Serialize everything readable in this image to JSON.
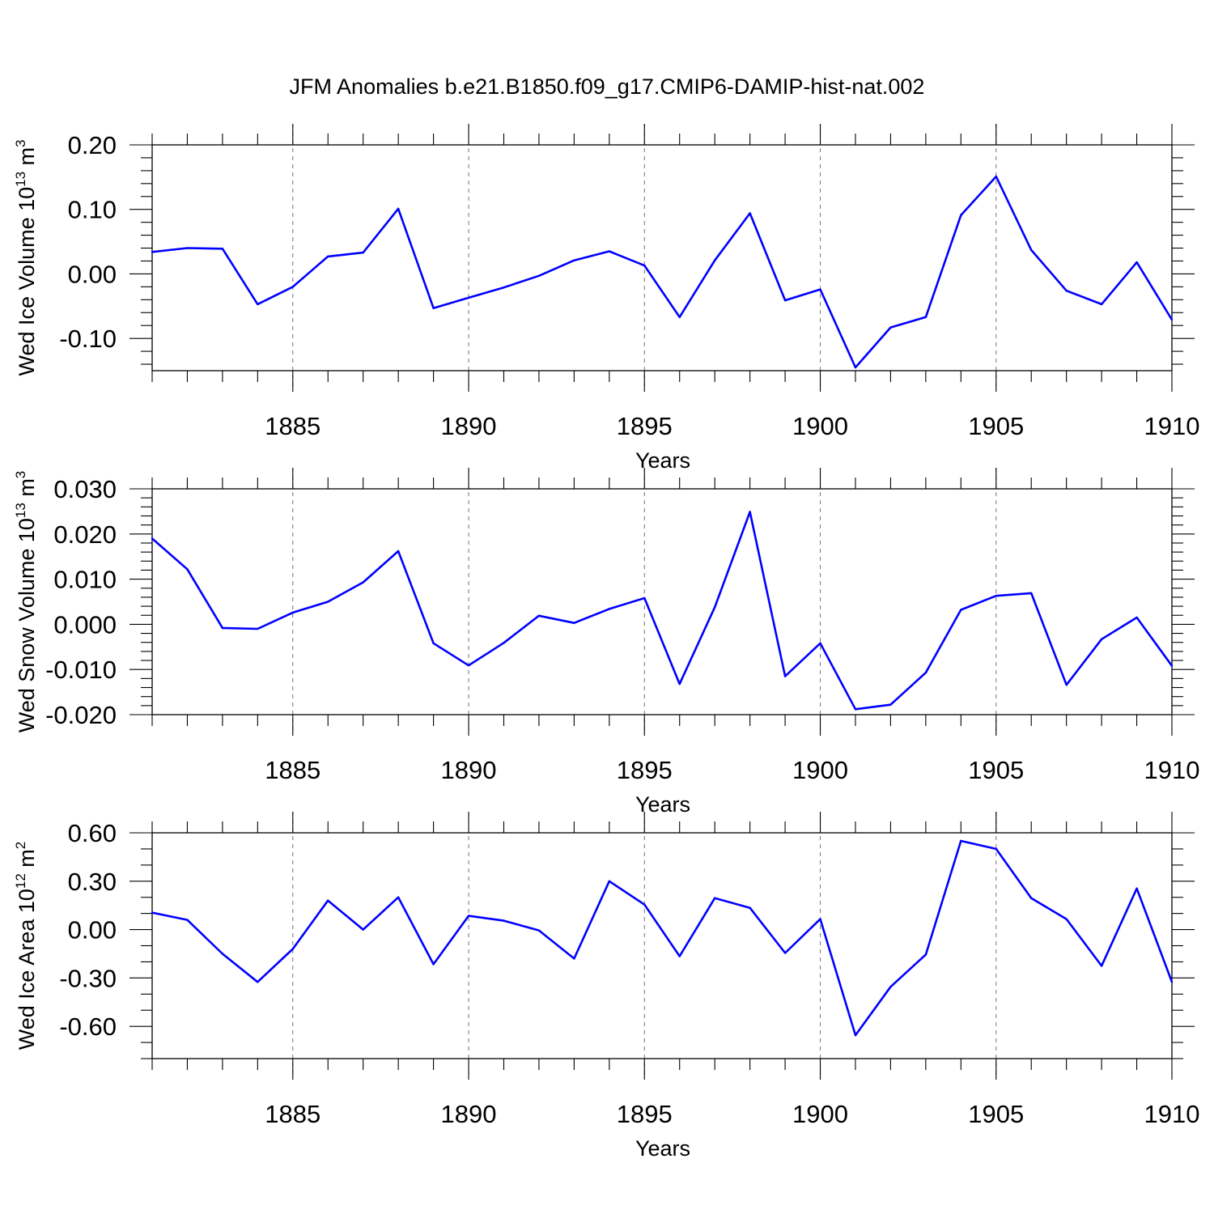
{
  "figure": {
    "title": "JFM Anomalies b.e21.B1850.f09_g17.CMIP6-DAMIP-hist-nat.002"
  },
  "chart_data": [
    {
      "type": "line",
      "title": "",
      "xlabel": "Years",
      "ylabel": {
        "main": "Wed Ice Volume 10",
        "sup": "13",
        "unit": " m",
        "unit_sup": "3"
      },
      "xlim": [
        1881,
        1910
      ],
      "ylim": [
        -0.15,
        0.2
      ],
      "x_ticks": [
        1885,
        1890,
        1895,
        1900,
        1905,
        1910
      ],
      "y_ticks": [
        -0.1,
        0.0,
        0.1,
        0.2
      ],
      "y_tick_labels": [
        "-0.10",
        "0.00",
        "0.10",
        "0.20"
      ],
      "y_minor_step": 0.02,
      "grid": "vertical dashed at major x ticks",
      "color": "#0000ff",
      "x": [
        1881,
        1882,
        1883,
        1884,
        1885,
        1886,
        1887,
        1888,
        1889,
        1890,
        1891,
        1892,
        1893,
        1894,
        1895,
        1896,
        1897,
        1898,
        1899,
        1900,
        1901,
        1902,
        1903,
        1904,
        1905,
        1906,
        1907,
        1908,
        1909,
        1910
      ],
      "values": [
        0.034,
        0.04,
        0.039,
        -0.047,
        -0.02,
        0.027,
        0.033,
        0.101,
        -0.053,
        -0.037,
        -0.021,
        -0.003,
        0.021,
        0.035,
        0.013,
        -0.067,
        0.021,
        0.094,
        -0.041,
        -0.024,
        -0.145,
        -0.083,
        -0.067,
        0.091,
        0.151,
        0.037,
        -0.026,
        -0.047,
        0.018,
        -0.071
      ]
    },
    {
      "type": "line",
      "title": "",
      "xlabel": "Years",
      "ylabel": {
        "main": "Wed Snow Volume 10",
        "sup": "13",
        "unit": " m",
        "unit_sup": "3"
      },
      "xlim": [
        1881,
        1910
      ],
      "ylim": [
        -0.02,
        0.03
      ],
      "x_ticks": [
        1885,
        1890,
        1895,
        1900,
        1905,
        1910
      ],
      "y_ticks": [
        -0.02,
        -0.01,
        0.0,
        0.01,
        0.02,
        0.03
      ],
      "y_tick_labels": [
        "-0.020",
        "-0.010",
        "0.000",
        "0.010",
        "0.020",
        "0.030"
      ],
      "y_minor_step": 0.002,
      "grid": "vertical dashed at major x ticks",
      "color": "#0000ff",
      "x": [
        1881,
        1882,
        1883,
        1884,
        1885,
        1886,
        1887,
        1888,
        1889,
        1890,
        1891,
        1892,
        1893,
        1894,
        1895,
        1896,
        1897,
        1898,
        1899,
        1900,
        1901,
        1902,
        1903,
        1904,
        1905,
        1906,
        1907,
        1908,
        1909,
        1910
      ],
      "values": [
        0.019,
        0.0122,
        -0.0008,
        -0.001,
        0.0026,
        0.005,
        0.0093,
        0.0162,
        -0.0042,
        -0.0091,
        -0.0041,
        0.0019,
        0.0003,
        0.0034,
        0.0058,
        -0.0132,
        0.0038,
        0.0249,
        -0.0115,
        -0.0042,
        -0.0188,
        -0.0178,
        -0.0107,
        0.0032,
        0.0063,
        0.0069,
        -0.0134,
        -0.0033,
        0.0015,
        -0.0092
      ]
    },
    {
      "type": "line",
      "title": "",
      "xlabel": "Years",
      "ylabel": {
        "main": "Wed Ice Area 10",
        "sup": "12",
        "unit": " m",
        "unit_sup": "2"
      },
      "xlim": [
        1881,
        1910
      ],
      "ylim": [
        -0.8,
        0.6
      ],
      "x_ticks": [
        1885,
        1890,
        1895,
        1900,
        1905,
        1910
      ],
      "y_ticks": [
        -0.6,
        -0.3,
        0.0,
        0.3,
        0.6
      ],
      "y_tick_labels": [
        "-0.60",
        "-0.30",
        "0.00",
        "0.30",
        "0.60"
      ],
      "y_minor_step": 0.1,
      "grid": "vertical dashed at major x ticks",
      "color": "#0000ff",
      "x": [
        1881,
        1882,
        1883,
        1884,
        1885,
        1886,
        1887,
        1888,
        1889,
        1890,
        1891,
        1892,
        1893,
        1894,
        1895,
        1896,
        1897,
        1898,
        1899,
        1900,
        1901,
        1902,
        1903,
        1904,
        1905,
        1906,
        1907,
        1908,
        1909,
        1910
      ],
      "values": [
        0.105,
        0.06,
        -0.15,
        -0.325,
        -0.12,
        0.18,
        0.0,
        0.2,
        -0.215,
        0.085,
        0.055,
        -0.005,
        -0.18,
        0.3,
        0.155,
        -0.165,
        0.195,
        0.135,
        -0.145,
        0.065,
        -0.655,
        -0.355,
        -0.155,
        0.55,
        0.5,
        0.195,
        0.065,
        -0.225,
        0.255,
        -0.325
      ]
    }
  ]
}
